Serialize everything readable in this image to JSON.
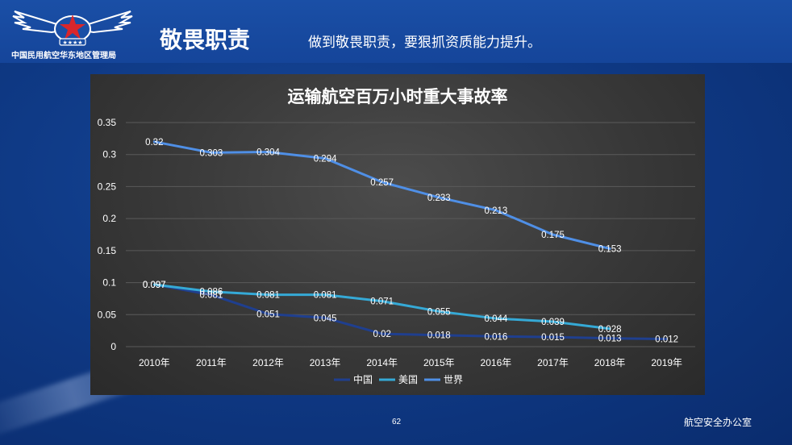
{
  "header": {
    "org_name": "中国民用航空华东地区管理局",
    "page_title": "敬畏职责",
    "subtitle": "做到敬畏职责，要狠抓资质能力提升。"
  },
  "footer": {
    "page_number": "62",
    "office": "航空安全办公室"
  },
  "colors": {
    "china": "#1f3f8f",
    "usa": "#35a9d6",
    "world": "#4f8fe6"
  },
  "chart_data": {
    "type": "line",
    "title": "运输航空百万小时重大事故率",
    "categories": [
      "2010年",
      "2011年",
      "2012年",
      "2013年",
      "2014年",
      "2015年",
      "2016年",
      "2017年",
      "2018年",
      "2019年"
    ],
    "yticks": [
      "0",
      "0.05",
      "0.1",
      "0.15",
      "0.2",
      "0.25",
      "0.3",
      "0.35"
    ],
    "ylim": [
      0,
      0.35
    ],
    "grid": true,
    "legend": "bottom",
    "series": [
      {
        "name": "中国",
        "values": [
          0.097,
          0.081,
          0.051,
          0.045,
          0.02,
          0.018,
          0.016,
          0.015,
          0.013,
          0.012
        ],
        "labels": [
          "0.097",
          "0.081",
          "0.051",
          "0.045",
          "0.02",
          "0.018",
          "0.016",
          "0.015",
          "0.013",
          "0.012"
        ]
      },
      {
        "name": "美国",
        "values": [
          0.097,
          0.086,
          0.081,
          0.081,
          0.071,
          0.055,
          0.044,
          0.039,
          0.028,
          null
        ],
        "labels": [
          "0.097",
          "0.086",
          "0.081",
          "0.081",
          "0.071",
          "0.055",
          "0.044",
          "0.039",
          "0.028",
          null
        ]
      },
      {
        "name": "世界",
        "values": [
          0.32,
          0.303,
          0.304,
          0.294,
          0.257,
          0.233,
          0.213,
          0.175,
          0.153,
          null
        ],
        "labels": [
          "0.32",
          "0.303",
          "0.304",
          "0.294",
          "0.257",
          "0.233",
          "0.213",
          "0.175",
          "0.153",
          null
        ]
      }
    ]
  }
}
